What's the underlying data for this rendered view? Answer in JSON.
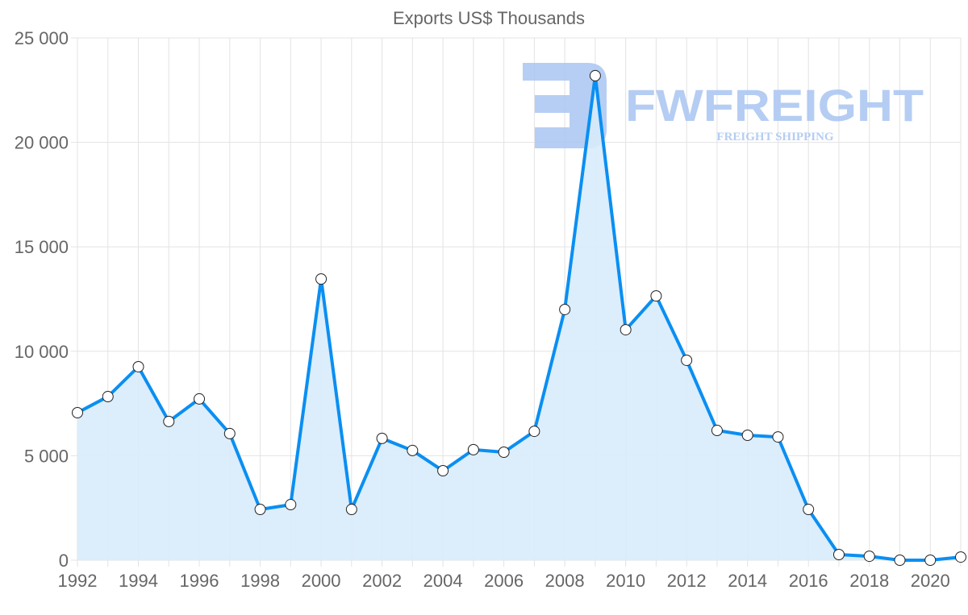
{
  "chart_data": {
    "type": "line",
    "title": "Exports US$ Thousands",
    "xlabel": "",
    "ylabel": "",
    "x": [
      1992,
      1993,
      1994,
      1995,
      1996,
      1997,
      1998,
      1999,
      2000,
      2001,
      2002,
      2003,
      2004,
      2005,
      2006,
      2007,
      2008,
      2009,
      2010,
      2011,
      2012,
      2013,
      2014,
      2015,
      2016,
      2017,
      2018,
      2019,
      2020,
      2021
    ],
    "series": [
      {
        "name": "Exports US$ Thousands",
        "values": [
          7060,
          7830,
          9260,
          6640,
          7720,
          6060,
          2430,
          2660,
          13460,
          2430,
          5830,
          5250,
          4280,
          5290,
          5170,
          6170,
          12000,
          23190,
          11030,
          12650,
          9570,
          6210,
          5980,
          5900,
          2430,
          270,
          190,
          0,
          0,
          150
        ],
        "color": "#0a8ff2",
        "fill": "#d8ebfb"
      }
    ],
    "ylim": [
      0,
      25000
    ],
    "yticks": [
      "0",
      "5 000",
      "10 000",
      "15 000",
      "20 000",
      "25 000"
    ],
    "xticks": [
      "1992",
      "1994",
      "1996",
      "1998",
      "2000",
      "2002",
      "2004",
      "2006",
      "2008",
      "2010",
      "2012",
      "2014",
      "2016",
      "2018",
      "2020"
    ],
    "grid": true,
    "legend": "none"
  },
  "watermark": {
    "name": "FWFREIGHT",
    "tagline": "FREIGHT SHIPPING",
    "color": "#a9c5f2"
  }
}
